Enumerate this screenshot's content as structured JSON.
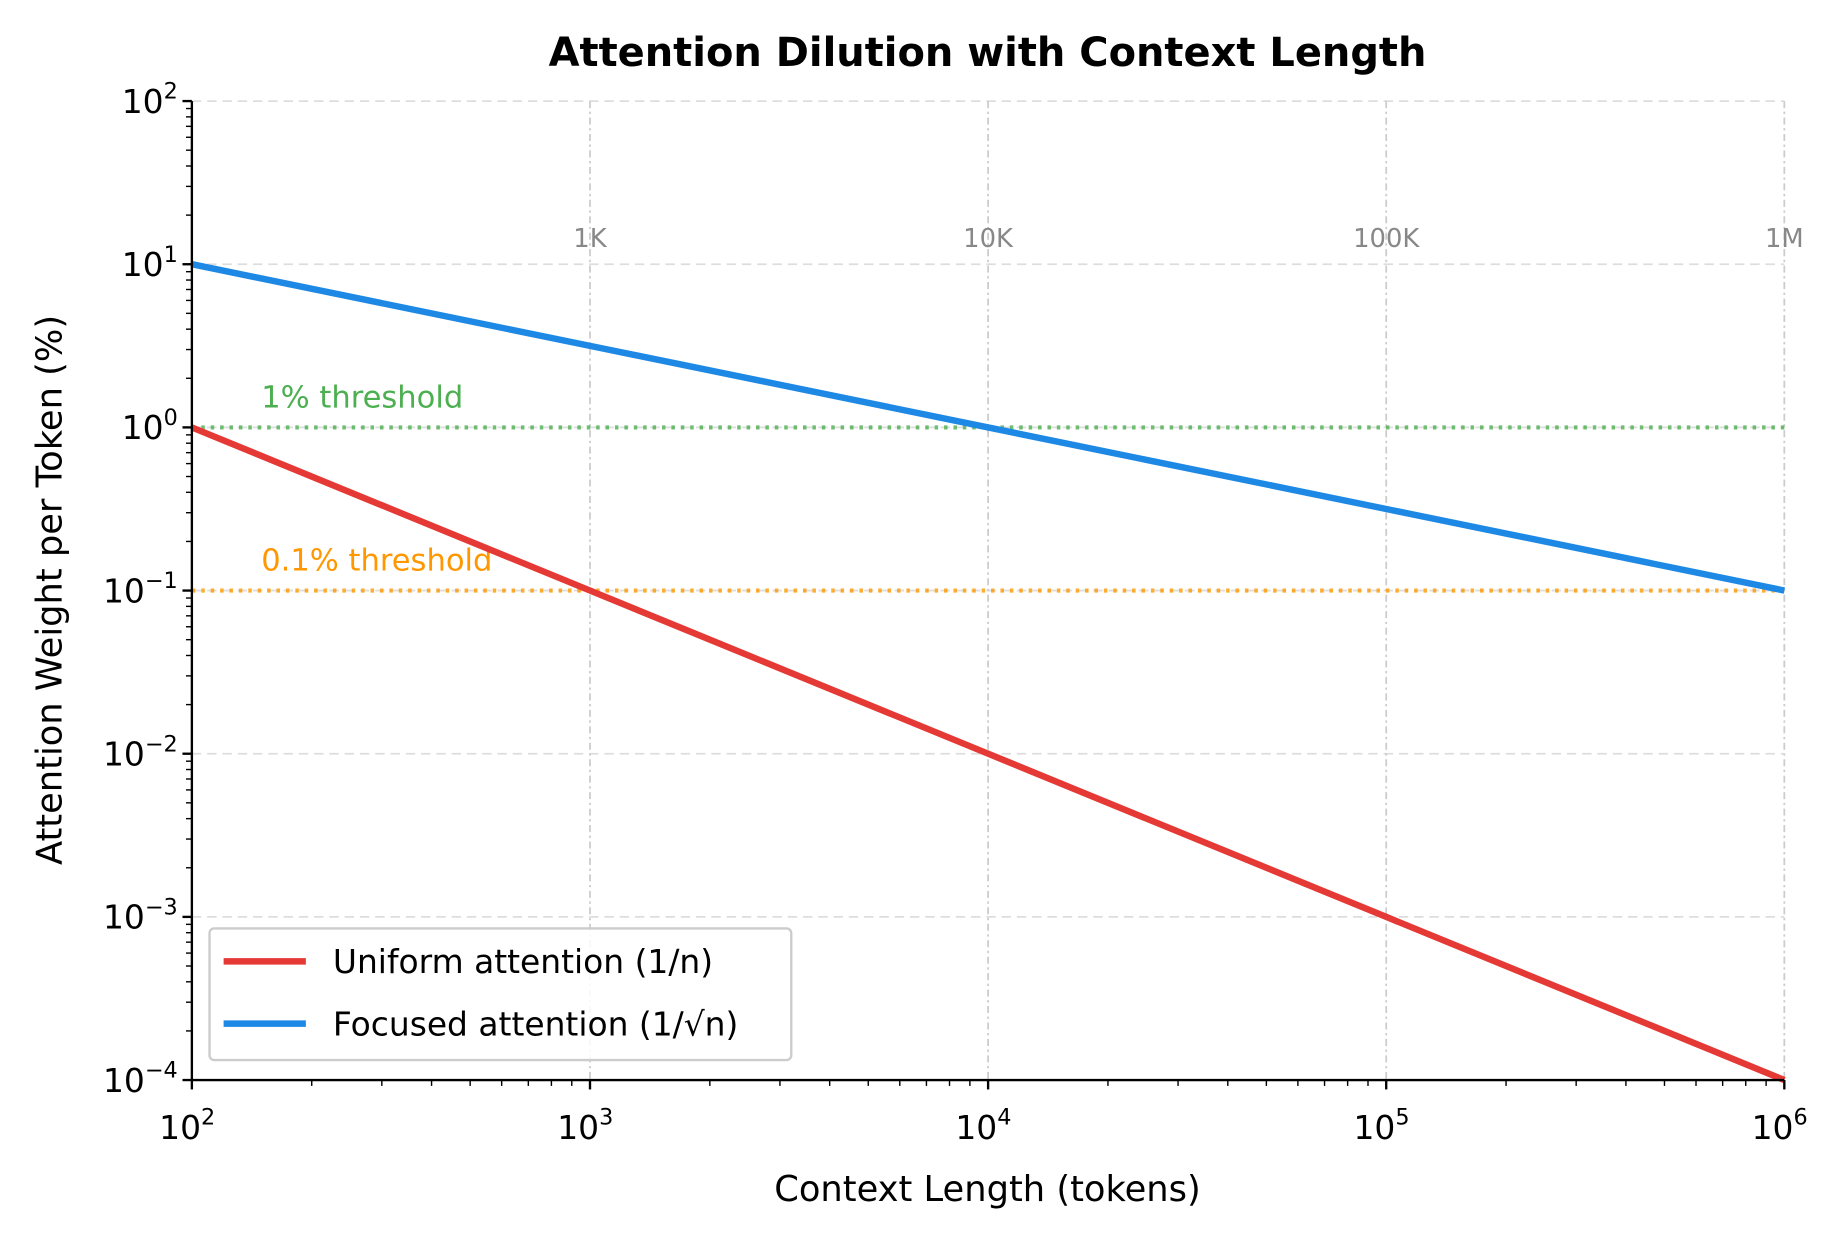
{
  "chart_data": {
    "type": "line",
    "title": "Attention Dilution with Context Length",
    "xlabel": "Context Length (tokens)",
    "ylabel": "Attention Weight per Token (%)",
    "xscale": "log",
    "yscale": "log",
    "xlim": [
      100,
      1000000
    ],
    "ylim": [
      0.0001,
      100
    ],
    "grid": true,
    "x_ticks": [
      {
        "value": 100,
        "base": "10",
        "exp": "2"
      },
      {
        "value": 1000,
        "base": "10",
        "exp": "3"
      },
      {
        "value": 10000,
        "base": "10",
        "exp": "4"
      },
      {
        "value": 100000,
        "base": "10",
        "exp": "5"
      },
      {
        "value": 1000000,
        "base": "10",
        "exp": "6"
      }
    ],
    "y_ticks": [
      {
        "value": 100,
        "base": "10",
        "exp": "2"
      },
      {
        "value": 10,
        "base": "10",
        "exp": "1"
      },
      {
        "value": 1,
        "base": "10",
        "exp": "0"
      },
      {
        "value": 0.1,
        "base": "10",
        "exp": "−1"
      },
      {
        "value": 0.01,
        "base": "10",
        "exp": "−2"
      },
      {
        "value": 0.001,
        "base": "10",
        "exp": "−3"
      },
      {
        "value": 0.0001,
        "base": "10",
        "exp": "−4"
      }
    ],
    "secondary_x_labels": [
      {
        "value": 1000,
        "label": "1K"
      },
      {
        "value": 10000,
        "label": "10K"
      },
      {
        "value": 100000,
        "label": "100K"
      },
      {
        "value": 1000000,
        "label": "1M"
      }
    ],
    "series": [
      {
        "name": "Uniform attention (1/n)",
        "color": "#e53935",
        "x": [
          100,
          1000,
          10000,
          100000,
          1000000
        ],
        "y": [
          1,
          0.1,
          0.01,
          0.001,
          0.0001
        ]
      },
      {
        "name": "Focused attention (1/√n)",
        "color": "#1e88e5",
        "x": [
          100,
          1000,
          10000,
          100000,
          1000000
        ],
        "y": [
          10,
          3.162,
          1,
          0.3162,
          0.1
        ]
      }
    ],
    "thresholds": [
      {
        "label": "1% threshold",
        "value": 1,
        "color": "#4caf50"
      },
      {
        "label": "0.1% threshold",
        "value": 0.1,
        "color": "#ff9800"
      }
    ],
    "legend": {
      "position": "lower-left"
    }
  }
}
